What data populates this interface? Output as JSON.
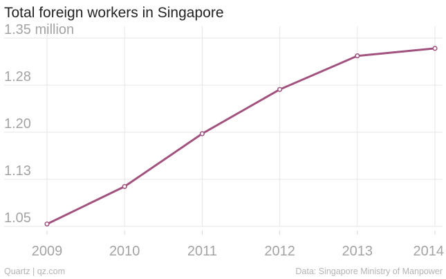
{
  "chart_data": {
    "type": "line",
    "title": "Total foreign workers in Singapore",
    "xlabel": "",
    "ylabel": "",
    "x": [
      "2009",
      "2010",
      "2011",
      "2012",
      "2013",
      "2014"
    ],
    "series": [
      {
        "values": [
          1.0538,
          1.1135,
          1.1977,
          1.2682,
          1.3217,
          1.3336
        ],
        "color": "#a2527e"
      }
    ],
    "y_ticks": [
      1.05,
      1.125,
      1.2,
      1.275,
      1.35
    ],
    "y_tick_labels": [
      "1.05",
      "1.13",
      "1.20",
      "1.28",
      "1.35 million"
    ],
    "ylim": [
      1.05,
      1.35
    ],
    "grid": true,
    "legend": "none"
  },
  "footer": {
    "left": "Quartz | qz.com",
    "right": "Data: Singapore Ministry of Manpower"
  }
}
